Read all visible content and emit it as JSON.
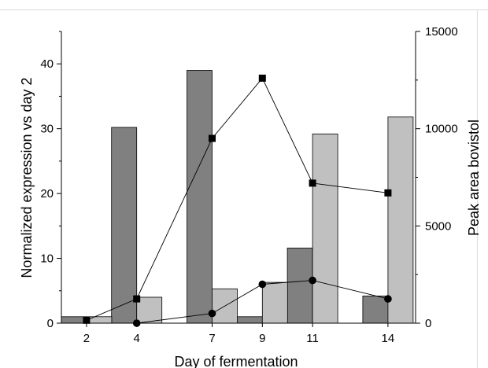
{
  "chart_data": {
    "type": "bar",
    "xlabel": "Day of fermentation",
    "ylabel": "Normalized expression vs day 2",
    "y2label": "Peak area bovistol",
    "x_ticks": [
      2,
      4,
      7,
      9,
      11,
      14
    ],
    "ylim": [
      0,
      45
    ],
    "y_ticks": [
      0,
      10,
      20,
      30,
      40
    ],
    "y2lim": [
      0,
      15000
    ],
    "y2_ticks": [
      0,
      5000,
      10000,
      15000
    ],
    "bar_series": [
      {
        "axis": "left",
        "color": "#808080",
        "points": [
          {
            "x": 2,
            "y": 1.0
          },
          {
            "x": 4,
            "y": 30.2
          },
          {
            "x": 7,
            "y": 39.0
          },
          {
            "x": 9,
            "y": 1.0
          },
          {
            "x": 11,
            "y": 11.6
          },
          {
            "x": 14,
            "y": 4.2
          }
        ]
      },
      {
        "axis": "left",
        "color": "#c0c0c0",
        "points": [
          {
            "x": 2,
            "y": 1.0
          },
          {
            "x": 4,
            "y": 4.0
          },
          {
            "x": 7,
            "y": 5.3
          },
          {
            "x": 9,
            "y": 6.3
          },
          {
            "x": 11,
            "y": 29.2
          },
          {
            "x": 14,
            "y": 31.8
          }
        ]
      }
    ],
    "line_series": [
      {
        "axis": "right",
        "marker": "square",
        "points": [
          {
            "x": 2,
            "y": 150
          },
          {
            "x": 4,
            "y": 1250
          },
          {
            "x": 7,
            "y": 9500
          },
          {
            "x": 9,
            "y": 12600
          },
          {
            "x": 11,
            "y": 7200
          },
          {
            "x": 14,
            "y": 6700
          }
        ]
      },
      {
        "axis": "right",
        "marker": "circle",
        "points": [
          {
            "x": 4,
            "y": 0
          },
          {
            "x": 7,
            "y": 500
          },
          {
            "x": 9,
            "y": 2000
          },
          {
            "x": 11,
            "y": 2200
          },
          {
            "x": 14,
            "y": 1250
          }
        ]
      }
    ],
    "grid": false,
    "legend": "none"
  }
}
